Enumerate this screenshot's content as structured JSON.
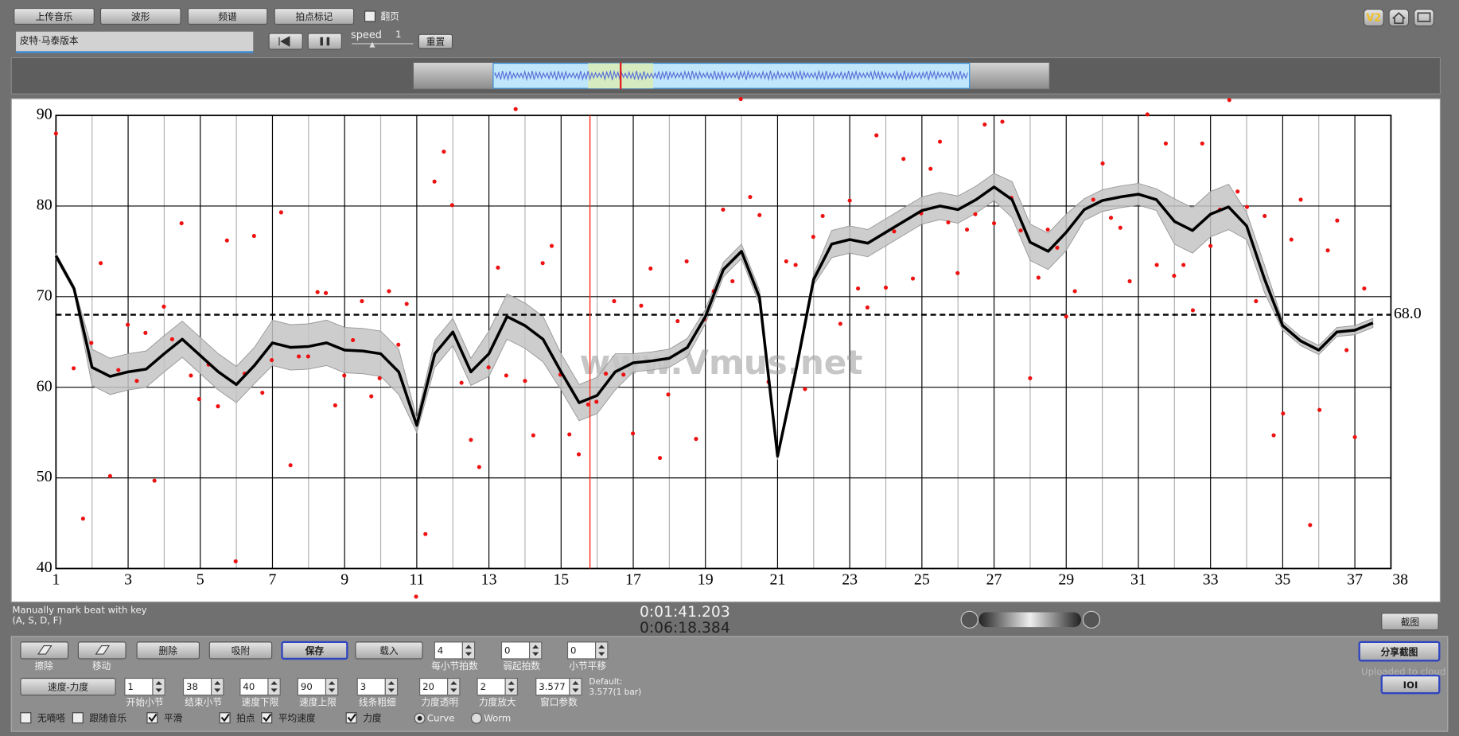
{
  "toolbar": {
    "buttons": [
      "上传音乐",
      "波形",
      "频谱",
      "拍点标记"
    ],
    "page_turn": {
      "label": "翻页",
      "checked": false
    },
    "track_name": "皮特·马泰版本",
    "speed_label": "speed",
    "speed_value": "1",
    "reset": "重置",
    "version": "V2"
  },
  "chart_data": {
    "type": "line",
    "watermark": "www.Vmus.net",
    "xlim": [
      1,
      38
    ],
    "ylim": [
      40,
      90
    ],
    "xticks": [
      1,
      3,
      5,
      7,
      9,
      11,
      13,
      15,
      17,
      19,
      21,
      23,
      25,
      27,
      29,
      31,
      33,
      35,
      37,
      38
    ],
    "x_minor_grid": [
      2,
      4,
      6,
      8,
      10,
      12,
      14,
      16,
      18,
      20,
      22,
      24,
      26,
      28,
      30,
      32,
      34,
      36
    ],
    "yticks": [
      40,
      50,
      60,
      70,
      80,
      90
    ],
    "reference_line": {
      "value": 68,
      "label": "68.0"
    },
    "cursor_x": 15.8,
    "cursor_color": "#ff2a1a",
    "x": [
      1,
      1.5,
      2,
      2.5,
      3,
      3.5,
      4,
      4.5,
      5,
      5.5,
      6,
      6.5,
      7,
      7.5,
      8,
      8.5,
      9,
      9.5,
      10,
      10.5,
      11,
      11.5,
      12,
      12.5,
      13,
      13.5,
      14,
      14.5,
      15,
      15.5,
      16,
      16.5,
      17,
      17.5,
      18,
      18.5,
      19,
      19.5,
      20,
      20.5,
      21,
      21.5,
      22,
      22.5,
      23,
      23.5,
      24,
      24.5,
      25,
      25.5,
      26,
      26.5,
      27,
      27.5,
      28,
      28.5,
      29,
      29.5,
      30,
      30.5,
      31,
      31.5,
      32,
      32.5,
      33,
      33.5,
      34,
      34.5,
      35,
      35.5,
      36,
      36.5,
      37,
      37.5
    ],
    "series": [
      {
        "color": "#000000",
        "values": [
          74.5,
          70.9,
          62.2,
          61.2,
          61.7,
          62.0,
          63.7,
          65.3,
          63.5,
          61.7,
          60.3,
          62.4,
          64.9,
          64.4,
          64.5,
          64.9,
          64.1,
          64.0,
          63.7,
          61.7,
          55.8,
          63.7,
          66.1,
          61.7,
          63.7,
          67.8,
          66.8,
          65.3,
          61.7,
          58.3,
          59.1,
          61.7,
          62.7,
          62.9,
          63.2,
          64.4,
          67.8,
          73.0,
          75.0,
          69.9,
          52.4,
          61.7,
          71.9,
          75.8,
          76.3,
          75.9,
          77.1,
          78.3,
          79.5,
          80.0,
          79.6,
          80.7,
          82.1,
          80.7,
          76.0,
          75.0,
          77.1,
          79.6,
          80.6,
          81.0,
          81.3,
          80.7,
          78.3,
          77.3,
          79.1,
          79.9,
          77.8,
          71.9,
          66.8,
          65.1,
          64.1,
          66.1,
          66.3,
          67.1
        ]
      }
    ],
    "band": {
      "color": "#c4c4c4",
      "upper": [
        74.8,
        71.2,
        64.2,
        63.2,
        63.7,
        64.0,
        65.7,
        67.3,
        65.5,
        63.7,
        62.3,
        64.4,
        67.4,
        66.9,
        67.0,
        67.4,
        66.6,
        66.5,
        66.2,
        64.2,
        56.6,
        65.2,
        67.6,
        63.2,
        66.2,
        70.3,
        69.3,
        67.8,
        63.7,
        60.3,
        61.1,
        63.7,
        63.7,
        63.9,
        64.2,
        65.4,
        68.6,
        73.8,
        75.8,
        70.7,
        52.8,
        62.3,
        72.5,
        77.3,
        77.8,
        77.4,
        78.6,
        79.8,
        81.0,
        81.5,
        81.1,
        82.2,
        83.6,
        82.7,
        78.0,
        77.0,
        79.1,
        80.8,
        81.8,
        82.2,
        82.5,
        81.9,
        80.8,
        79.8,
        81.6,
        82.4,
        79.3,
        73.4,
        67.3,
        65.6,
        64.6,
        66.6,
        66.8,
        67.6
      ],
      "lower": [
        74.2,
        70.6,
        60.2,
        59.2,
        59.7,
        60.0,
        61.7,
        63.3,
        61.5,
        59.7,
        58.3,
        60.4,
        62.4,
        61.9,
        62.0,
        62.4,
        61.6,
        61.5,
        61.2,
        59.2,
        55.0,
        62.2,
        64.6,
        60.2,
        61.2,
        65.3,
        64.3,
        62.8,
        59.7,
        56.3,
        57.1,
        59.7,
        61.7,
        61.9,
        62.2,
        63.4,
        67.0,
        72.2,
        74.2,
        69.1,
        52.0,
        61.1,
        71.3,
        74.3,
        74.8,
        74.4,
        75.6,
        76.8,
        78.0,
        78.5,
        78.1,
        79.2,
        80.6,
        78.7,
        74.0,
        73.0,
        75.1,
        78.4,
        79.4,
        79.8,
        80.1,
        79.5,
        75.8,
        74.8,
        76.6,
        77.4,
        76.3,
        70.4,
        66.3,
        64.6,
        63.6,
        65.6,
        65.8,
        66.6
      ]
    },
    "points": {
      "color": "#ee1111",
      "x": [
        1.0,
        1.49,
        1.75,
        1.98,
        2.24,
        2.5,
        2.73,
        2.99,
        3.24,
        3.48,
        3.73,
        3.99,
        4.22,
        4.48,
        4.74,
        4.97,
        5.23,
        5.49,
        5.74,
        5.98,
        6.23,
        6.49,
        6.72,
        6.98,
        7.24,
        7.5,
        7.73,
        7.99,
        8.25,
        8.48,
        8.74,
        8.99,
        9.23,
        9.48,
        9.74,
        9.97,
        10.23,
        10.49,
        10.72,
        10.98,
        11.24,
        11.49,
        11.75,
        11.98,
        12.24,
        12.5,
        12.73,
        12.99,
        13.25,
        13.48,
        13.74,
        14.0,
        14.23,
        14.49,
        14.74,
        14.98,
        15.23,
        15.49,
        15.75,
        15.98,
        16.24,
        16.47,
        16.73,
        16.99,
        17.22,
        17.48,
        17.74,
        17.97,
        18.23,
        18.48,
        18.74,
        18.97,
        19.23,
        19.49,
        19.75,
        19.98,
        20.24,
        20.5,
        20.75,
        21.24,
        21.5,
        21.76,
        21.99,
        22.25,
        22.74,
        23.0,
        23.23,
        23.49,
        23.74,
        24.0,
        24.23,
        24.49,
        24.75,
        24.98,
        25.24,
        25.5,
        25.73,
        25.99,
        26.25,
        26.48,
        26.74,
        27.0,
        27.23,
        27.48,
        27.74,
        28.0,
        28.23,
        28.49,
        28.75,
        29.0,
        29.24,
        29.75,
        30.01,
        30.24,
        30.5,
        30.76,
        31.25,
        31.51,
        31.76,
        31.99,
        32.25,
        32.51,
        32.77,
        33.0,
        33.26,
        33.52,
        33.75,
        34.01,
        34.26,
        34.5,
        34.75,
        35.01,
        35.24,
        35.5,
        35.76,
        36.02,
        36.25,
        36.51,
        36.77,
        37.0,
        37.26
      ],
      "values": [
        88.0,
        62.1,
        45.5,
        64.9,
        73.7,
        50.2,
        61.9,
        66.9,
        60.7,
        66.0,
        49.7,
        68.9,
        65.3,
        78.1,
        61.3,
        58.7,
        62.5,
        57.9,
        76.2,
        40.8,
        61.5,
        76.7,
        59.4,
        63.0,
        79.3,
        51.4,
        63.4,
        63.4,
        70.5,
        70.4,
        58.0,
        61.3,
        65.2,
        69.5,
        59.0,
        61.0,
        70.6,
        64.7,
        69.2,
        36.9,
        43.8,
        82.7,
        86.0,
        80.1,
        60.5,
        54.2,
        51.2,
        62.2,
        73.2,
        61.3,
        90.7,
        60.7,
        54.7,
        73.7,
        75.6,
        61.4,
        54.8,
        52.6,
        58.1,
        58.4,
        61.5,
        69.5,
        61.4,
        54.9,
        69.0,
        73.1,
        52.2,
        59.2,
        67.3,
        73.9,
        54.3,
        67.5,
        70.6,
        79.6,
        71.7,
        91.8,
        81.0,
        79.0,
        60.6,
        73.9,
        73.5,
        59.8,
        76.6,
        78.9,
        67.0,
        80.6,
        70.9,
        68.8,
        87.8,
        71.0,
        77.2,
        85.2,
        72.0,
        79.2,
        84.1,
        87.1,
        78.2,
        72.6,
        77.4,
        79.1,
        89.0,
        78.1,
        89.3,
        80.9,
        77.3,
        61.0,
        72.1,
        77.4,
        75.4,
        67.8,
        70.6,
        80.7,
        84.7,
        78.7,
        77.6,
        71.7,
        90.1,
        73.5,
        86.9,
        72.3,
        73.5,
        68.5,
        86.9,
        75.6,
        79.6,
        91.7,
        81.6,
        79.9,
        69.5,
        78.9,
        54.7,
        57.1,
        76.3,
        80.7,
        44.8,
        57.5,
        75.1,
        78.4,
        64.1,
        54.5,
        70.9
      ]
    }
  },
  "status": {
    "hint_line1": "Manually mark beat with key",
    "hint_line2": "(A, S, D, F)",
    "current_time": "0:01:41.203",
    "total_time": "0:06:18.384",
    "screenshot": "截图"
  },
  "controls": {
    "tool_labels": [
      "擦除",
      "移动"
    ],
    "buttons": [
      "删除",
      "吸附",
      "保存",
      "载入"
    ],
    "mode_button": "速度-力度",
    "spinners": [
      {
        "value": "4",
        "label": "每小节拍数"
      },
      {
        "value": "0",
        "label": "弱起拍数"
      },
      {
        "value": "0",
        "label": "小节平移"
      },
      {
        "value": "1",
        "label": "开始小节"
      },
      {
        "value": "38",
        "label": "结束小节"
      },
      {
        "value": "40",
        "label": "速度下限"
      },
      {
        "value": "90",
        "label": "速度上限"
      },
      {
        "value": "3",
        "label": "线条粗细"
      },
      {
        "value": "20",
        "label": "力度透明"
      },
      {
        "value": "2",
        "label": "力度放大"
      },
      {
        "value": "3.577",
        "label": "窗口参数"
      }
    ],
    "default_label": "Default:",
    "default_value": "3.577(1 bar)",
    "checkboxes": [
      {
        "label": "无嘀嗒",
        "checked": false
      },
      {
        "label": "跟随音乐",
        "checked": false
      },
      {
        "label": "平滑",
        "checked": true
      },
      {
        "label": "拍点",
        "checked": true
      },
      {
        "label": "平均速度",
        "checked": true
      },
      {
        "label": "力度",
        "checked": true
      }
    ],
    "radios": [
      {
        "label": "Curve",
        "selected": true
      },
      {
        "label": "Worm",
        "selected": false
      }
    ],
    "share": "分享截图",
    "uploaded": "Uploaded to cloud",
    "ioi": "IOI"
  }
}
